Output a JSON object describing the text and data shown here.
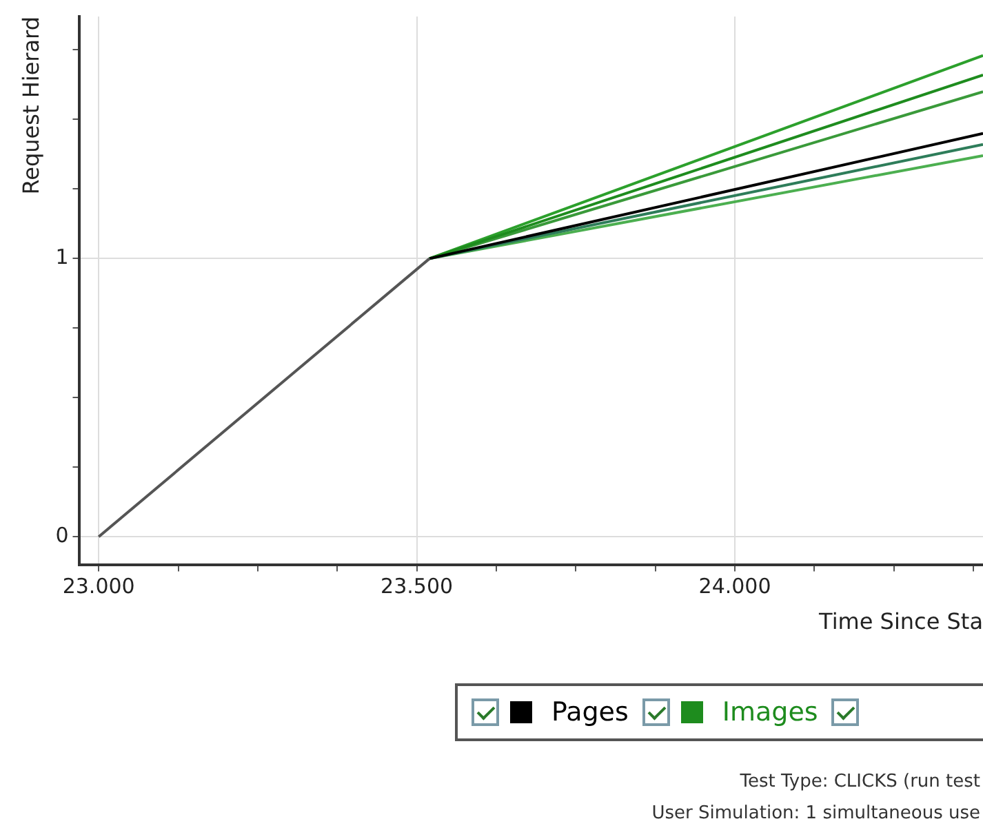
{
  "chart_data": {
    "type": "line",
    "xlabel": "Time Since Sta",
    "ylabel": "Request Hierard",
    "xlim": [
      22970,
      24390
    ],
    "ylim": [
      -0.1,
      1.87
    ],
    "xticks": [
      {
        "value": 23000,
        "label": "23.000"
      },
      {
        "value": 23125,
        "label": null
      },
      {
        "value": 23250,
        "label": null
      },
      {
        "value": 23375,
        "label": null
      },
      {
        "value": 23500,
        "label": "23.500"
      },
      {
        "value": 23625,
        "label": null
      },
      {
        "value": 23750,
        "label": null
      },
      {
        "value": 23875,
        "label": null
      },
      {
        "value": 24000,
        "label": "24.000"
      },
      {
        "value": 24125,
        "label": null
      },
      {
        "value": 24250,
        "label": null
      },
      {
        "value": 24375,
        "label": null
      }
    ],
    "yticks": [
      0,
      {
        "value": 0.25,
        "label": null
      },
      {
        "value": 0.5,
        "label": null
      },
      {
        "value": 0.75,
        "label": null
      },
      1,
      {
        "value": 1.25,
        "label": null
      },
      {
        "value": 1.5,
        "label": null
      },
      {
        "value": 1.75,
        "label": null
      }
    ],
    "grid": true,
    "legend": "bottom",
    "marker": "none",
    "line_style": "solid",
    "series": [
      {
        "color": "#555555",
        "x": [
          23000,
          23520
        ],
        "values": [
          0,
          1
        ]
      },
      {
        "name": "Pages",
        "color": "#000000",
        "x": [
          23520,
          24390
        ],
        "values": [
          1,
          1.45
        ]
      },
      {
        "name": "Images",
        "color": "#1e8c1e",
        "x": [
          23520,
          24390
        ],
        "values": [
          1,
          1.66
        ]
      },
      {
        "color": "#2ca02c",
        "x": [
          23520,
          24390
        ],
        "values": [
          1,
          1.73
        ]
      },
      {
        "color": "#3a9a3a",
        "x": [
          23520,
          24390
        ],
        "values": [
          1,
          1.6
        ]
      },
      {
        "color": "#2e7d5a",
        "x": [
          23520,
          24390
        ],
        "values": [
          1,
          1.41
        ]
      },
      {
        "color": "#4caf50",
        "x": [
          23520,
          24390
        ],
        "values": [
          1,
          1.37
        ]
      }
    ],
    "annotations": [
      "Test Type: CLICKS (run test",
      "User Simulation: 1 simultaneous use"
    ]
  }
}
